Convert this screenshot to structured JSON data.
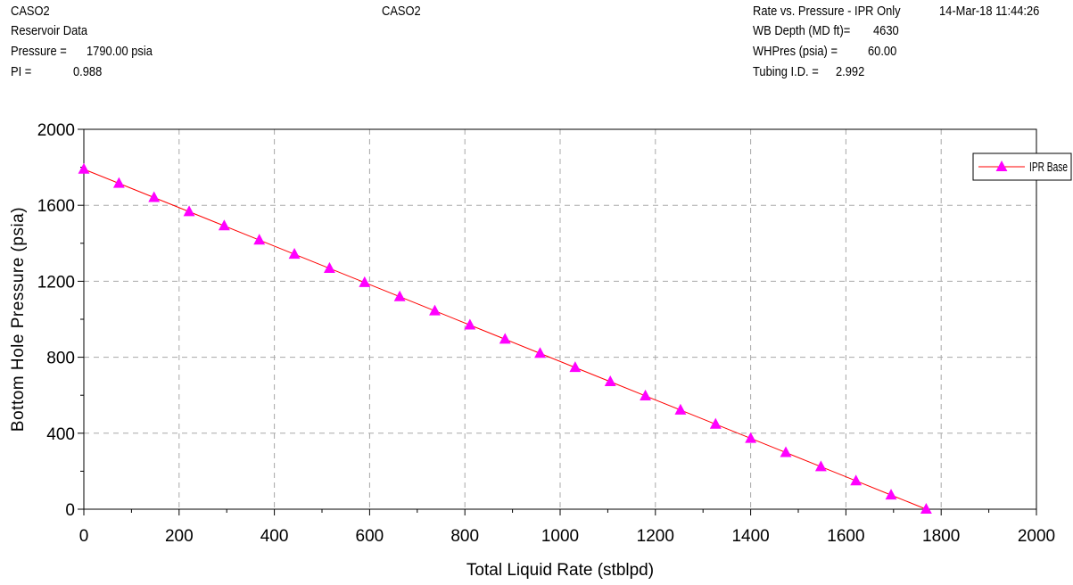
{
  "header": {
    "left": {
      "case_name": "CASO2",
      "section_title": "Reservoir Data",
      "pressure_label": "Pressure =",
      "pressure_value": "1790.00 psia",
      "pi_label": "PI =",
      "pi_value": "0.988"
    },
    "center": {
      "case_name": "CASO2"
    },
    "right": {
      "plot_title": "Rate vs. Pressure - IPR Only",
      "timestamp": "14-Mar-18 11:44:26",
      "wb_depth_label": "WB Depth (MD ft)=",
      "wb_depth_value": "4630",
      "whpres_label": "WHPres (psia) =",
      "whpres_value": "60.00",
      "tubing_label": "Tubing I.D. =",
      "tubing_value": "2.992"
    }
  },
  "chart_data": {
    "type": "line",
    "xlabel": "Total Liquid Rate (stblpd)",
    "ylabel": "Bottom Hole Pressure (psia)",
    "xlim": [
      0,
      2000
    ],
    "ylim": [
      0,
      2000
    ],
    "xticks": [
      0,
      200,
      400,
      600,
      800,
      1000,
      1200,
      1400,
      1600,
      1800,
      2000
    ],
    "yticks": [
      0,
      400,
      800,
      1200,
      1600,
      2000
    ],
    "grid": true,
    "legend_position": "top-right",
    "series": [
      {
        "name": "IPR Base",
        "line_color": "#ff0000",
        "marker": "triangle",
        "marker_color": "#ff00ff",
        "x": [
          0,
          73.7,
          147.4,
          221.1,
          294.7,
          368.4,
          442.1,
          515.8,
          589.5,
          663.2,
          736.9,
          810.6,
          884.3,
          957.9,
          1031.6,
          1105.3,
          1179.0,
          1252.7,
          1326.4,
          1400.1,
          1473.8,
          1547.5,
          1621.1,
          1694.8,
          1768.5
        ],
        "y": [
          1790.0,
          1715.4,
          1640.8,
          1566.3,
          1491.7,
          1417.1,
          1342.5,
          1267.9,
          1193.3,
          1118.8,
          1044.2,
          969.6,
          895.0,
          820.4,
          745.8,
          671.3,
          596.7,
          522.1,
          447.5,
          372.9,
          298.3,
          223.8,
          149.2,
          74.6,
          0.0
        ]
      }
    ]
  }
}
